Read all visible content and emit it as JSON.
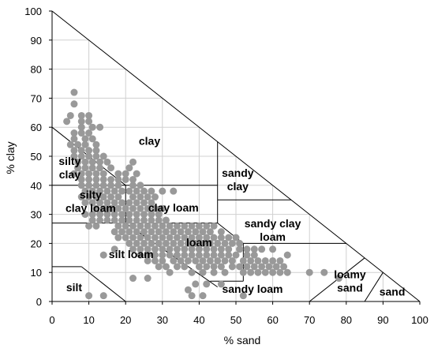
{
  "chart_data": {
    "type": "scatter",
    "title": "",
    "xlabel": "% sand",
    "ylabel": "% clay",
    "xlim": [
      0,
      100
    ],
    "ylim": [
      0,
      100
    ],
    "grid": true,
    "x_ticks": [
      "0",
      "10",
      "20",
      "30",
      "40",
      "50",
      "60",
      "70",
      "80",
      "90",
      "100"
    ],
    "y_ticks": [
      "0",
      "10",
      "20",
      "30",
      "40",
      "50",
      "60",
      "70",
      "80",
      "90",
      "100"
    ],
    "point_color": "#999999",
    "regions": [
      {
        "label": "clay",
        "lines": [
          "clay"
        ]
      },
      {
        "label": "silty clay",
        "lines": [
          "silty",
          "clay"
        ]
      },
      {
        "label": "silty clay loam",
        "lines": [
          "silty",
          "clay loam"
        ]
      },
      {
        "label": "clay loam",
        "lines": [
          "clay loam"
        ]
      },
      {
        "label": "sandy clay",
        "lines": [
          "sandy",
          "clay"
        ]
      },
      {
        "label": "sandy clay loam",
        "lines": [
          "sandy clay",
          "loam"
        ]
      },
      {
        "label": "loam",
        "lines": [
          "loam"
        ]
      },
      {
        "label": "silt loam",
        "lines": [
          "silt loam"
        ]
      },
      {
        "label": "silt",
        "lines": [
          "silt"
        ]
      },
      {
        "label": "sandy loam",
        "lines": [
          "sandy loam"
        ]
      },
      {
        "label": "loamy sand",
        "lines": [
          "loamy",
          "sand"
        ]
      },
      {
        "label": "sand",
        "lines": [
          "sand"
        ]
      }
    ],
    "points": [
      [
        6,
        72
      ],
      [
        6,
        68
      ],
      [
        5,
        64
      ],
      [
        8,
        64
      ],
      [
        10,
        64
      ],
      [
        4,
        62
      ],
      [
        8,
        62
      ],
      [
        10,
        62
      ],
      [
        11,
        60
      ],
      [
        13,
        60
      ],
      [
        8,
        60
      ],
      [
        6,
        58
      ],
      [
        8,
        58
      ],
      [
        10,
        58
      ],
      [
        6,
        56
      ],
      [
        9,
        56
      ],
      [
        11,
        56
      ],
      [
        5,
        54
      ],
      [
        7,
        54
      ],
      [
        9,
        54
      ],
      [
        12,
        54
      ],
      [
        6,
        52
      ],
      [
        8,
        52
      ],
      [
        10,
        52
      ],
      [
        12,
        52
      ],
      [
        6,
        50
      ],
      [
        8,
        50
      ],
      [
        10,
        50
      ],
      [
        12,
        50
      ],
      [
        14,
        50
      ],
      [
        7,
        48
      ],
      [
        9,
        48
      ],
      [
        11,
        48
      ],
      [
        13,
        48
      ],
      [
        15,
        48
      ],
      [
        22,
        48
      ],
      [
        7,
        46
      ],
      [
        9,
        46
      ],
      [
        11,
        46
      ],
      [
        13,
        46
      ],
      [
        16,
        46
      ],
      [
        21,
        46
      ],
      [
        6,
        44
      ],
      [
        8,
        44
      ],
      [
        10,
        44
      ],
      [
        12,
        44
      ],
      [
        14,
        44
      ],
      [
        18,
        44
      ],
      [
        20,
        44
      ],
      [
        23,
        44
      ],
      [
        8,
        42
      ],
      [
        10,
        42
      ],
      [
        12,
        42
      ],
      [
        14,
        42
      ],
      [
        16,
        42
      ],
      [
        18,
        42
      ],
      [
        20,
        42
      ],
      [
        22,
        42
      ],
      [
        8,
        40
      ],
      [
        10,
        40
      ],
      [
        12,
        40
      ],
      [
        14,
        40
      ],
      [
        16,
        40
      ],
      [
        18,
        40
      ],
      [
        22,
        40
      ],
      [
        24,
        40
      ],
      [
        9,
        38
      ],
      [
        11,
        38
      ],
      [
        13,
        38
      ],
      [
        15,
        38
      ],
      [
        17,
        38
      ],
      [
        19,
        38
      ],
      [
        21,
        38
      ],
      [
        23,
        38
      ],
      [
        25,
        38
      ],
      [
        27,
        38
      ],
      [
        30,
        38
      ],
      [
        33,
        38
      ],
      [
        8,
        36
      ],
      [
        10,
        36
      ],
      [
        12,
        36
      ],
      [
        14,
        36
      ],
      [
        16,
        36
      ],
      [
        18,
        36
      ],
      [
        22,
        36
      ],
      [
        24,
        36
      ],
      [
        26,
        36
      ],
      [
        28,
        36
      ],
      [
        9,
        34
      ],
      [
        11,
        34
      ],
      [
        13,
        34
      ],
      [
        15,
        34
      ],
      [
        17,
        34
      ],
      [
        19,
        34
      ],
      [
        21,
        34
      ],
      [
        23,
        34
      ],
      [
        25,
        34
      ],
      [
        27,
        34
      ],
      [
        12,
        32
      ],
      [
        14,
        32
      ],
      [
        16,
        32
      ],
      [
        18,
        32
      ],
      [
        20,
        32
      ],
      [
        22,
        32
      ],
      [
        24,
        32
      ],
      [
        26,
        32
      ],
      [
        28,
        32
      ],
      [
        30,
        32
      ],
      [
        9,
        30
      ],
      [
        11,
        30
      ],
      [
        13,
        30
      ],
      [
        15,
        30
      ],
      [
        17,
        30
      ],
      [
        19,
        30
      ],
      [
        21,
        30
      ],
      [
        23,
        30
      ],
      [
        25,
        30
      ],
      [
        27,
        30
      ],
      [
        29,
        30
      ],
      [
        11,
        28
      ],
      [
        13,
        28
      ],
      [
        15,
        28
      ],
      [
        17,
        28
      ],
      [
        19,
        28
      ],
      [
        21,
        28
      ],
      [
        23,
        28
      ],
      [
        25,
        28
      ],
      [
        27,
        28
      ],
      [
        29,
        28
      ],
      [
        31,
        28
      ],
      [
        10,
        26
      ],
      [
        12,
        26
      ],
      [
        18,
        26
      ],
      [
        20,
        26
      ],
      [
        22,
        26
      ],
      [
        24,
        26
      ],
      [
        26,
        26
      ],
      [
        28,
        26
      ],
      [
        30,
        26
      ],
      [
        32,
        26
      ],
      [
        34,
        26
      ],
      [
        36,
        26
      ],
      [
        38,
        26
      ],
      [
        40,
        26
      ],
      [
        42,
        26
      ],
      [
        44,
        26
      ],
      [
        17,
        24
      ],
      [
        19,
        24
      ],
      [
        21,
        24
      ],
      [
        23,
        24
      ],
      [
        25,
        24
      ],
      [
        27,
        24
      ],
      [
        29,
        24
      ],
      [
        31,
        24
      ],
      [
        33,
        24
      ],
      [
        35,
        24
      ],
      [
        37,
        24
      ],
      [
        39,
        24
      ],
      [
        41,
        24
      ],
      [
        43,
        24
      ],
      [
        46,
        24
      ],
      [
        18,
        22
      ],
      [
        20,
        22
      ],
      [
        22,
        22
      ],
      [
        24,
        22
      ],
      [
        26,
        22
      ],
      [
        28,
        22
      ],
      [
        30,
        22
      ],
      [
        32,
        22
      ],
      [
        34,
        22
      ],
      [
        36,
        22
      ],
      [
        38,
        22
      ],
      [
        40,
        22
      ],
      [
        42,
        22
      ],
      [
        44,
        22
      ],
      [
        46,
        22
      ],
      [
        48,
        22
      ],
      [
        50,
        22
      ],
      [
        21,
        20
      ],
      [
        23,
        20
      ],
      [
        25,
        20
      ],
      [
        27,
        20
      ],
      [
        29,
        20
      ],
      [
        31,
        20
      ],
      [
        33,
        20
      ],
      [
        35,
        20
      ],
      [
        37,
        20
      ],
      [
        39,
        20
      ],
      [
        41,
        20
      ],
      [
        43,
        20
      ],
      [
        45,
        20
      ],
      [
        47,
        20
      ],
      [
        49,
        20
      ],
      [
        51,
        20
      ],
      [
        17,
        18
      ],
      [
        22,
        18
      ],
      [
        24,
        18
      ],
      [
        26,
        18
      ],
      [
        28,
        18
      ],
      [
        30,
        18
      ],
      [
        32,
        18
      ],
      [
        34,
        18
      ],
      [
        36,
        18
      ],
      [
        38,
        18
      ],
      [
        40,
        18
      ],
      [
        42,
        18
      ],
      [
        44,
        18
      ],
      [
        46,
        18
      ],
      [
        48,
        18
      ],
      [
        51,
        18
      ],
      [
        53,
        18
      ],
      [
        55,
        18
      ],
      [
        57,
        18
      ],
      [
        60,
        18
      ],
      [
        14,
        16
      ],
      [
        24,
        16
      ],
      [
        26,
        16
      ],
      [
        28,
        16
      ],
      [
        30,
        16
      ],
      [
        32,
        16
      ],
      [
        34,
        16
      ],
      [
        36,
        16
      ],
      [
        38,
        16
      ],
      [
        40,
        16
      ],
      [
        42,
        16
      ],
      [
        44,
        16
      ],
      [
        46,
        16
      ],
      [
        48,
        16
      ],
      [
        50,
        16
      ],
      [
        53,
        16
      ],
      [
        55,
        16
      ],
      [
        64,
        16
      ],
      [
        26,
        14
      ],
      [
        28,
        14
      ],
      [
        30,
        14
      ],
      [
        33,
        14
      ],
      [
        35,
        14
      ],
      [
        37,
        14
      ],
      [
        39,
        14
      ],
      [
        41,
        14
      ],
      [
        43,
        14
      ],
      [
        45,
        14
      ],
      [
        47,
        14
      ],
      [
        49,
        14
      ],
      [
        52,
        14
      ],
      [
        54,
        14
      ],
      [
        56,
        14
      ],
      [
        58,
        14
      ],
      [
        60,
        14
      ],
      [
        62,
        14
      ],
      [
        29,
        12
      ],
      [
        31,
        12
      ],
      [
        34,
        12
      ],
      [
        36,
        12
      ],
      [
        40,
        12
      ],
      [
        42,
        12
      ],
      [
        44,
        12
      ],
      [
        46,
        12
      ],
      [
        49,
        12
      ],
      [
        51,
        12
      ],
      [
        53,
        12
      ],
      [
        55,
        12
      ],
      [
        57,
        12
      ],
      [
        59,
        12
      ],
      [
        61,
        12
      ],
      [
        63,
        12
      ],
      [
        32,
        10
      ],
      [
        38,
        10
      ],
      [
        41,
        10
      ],
      [
        44,
        10
      ],
      [
        47,
        10
      ],
      [
        52,
        10
      ],
      [
        54,
        10
      ],
      [
        56,
        10
      ],
      [
        58,
        10
      ],
      [
        60,
        10
      ],
      [
        62,
        10
      ],
      [
        64,
        10
      ],
      [
        70,
        10
      ],
      [
        74,
        10
      ],
      [
        78,
        8
      ],
      [
        22,
        8
      ],
      [
        26,
        8
      ],
      [
        39,
        6
      ],
      [
        42,
        6
      ],
      [
        46,
        6
      ],
      [
        37,
        4
      ],
      [
        10,
        2
      ],
      [
        14,
        2
      ],
      [
        38,
        2
      ],
      [
        41,
        2
      ],
      [
        52,
        2
      ]
    ]
  }
}
